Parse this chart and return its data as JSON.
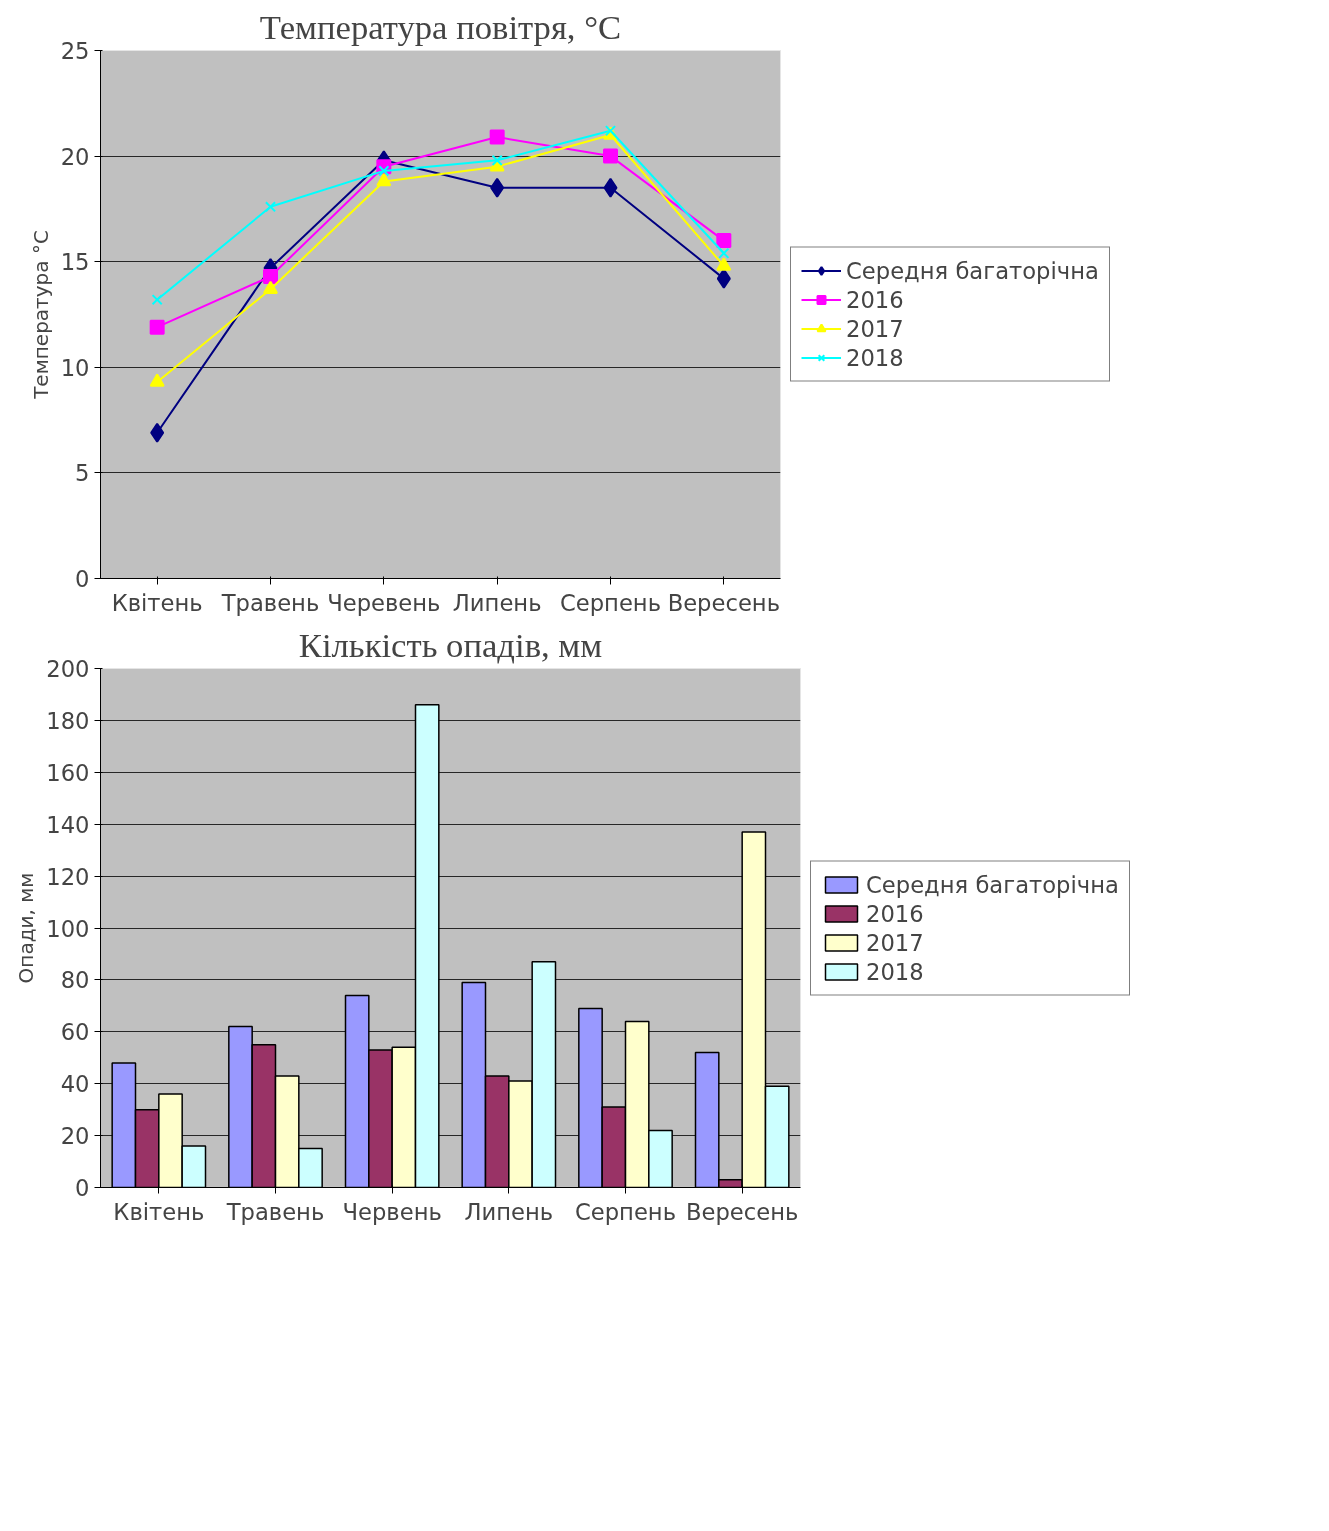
{
  "chart_data": [
    {
      "type": "line",
      "title": "Температура повітря, °C",
      "ylabel": "Температура °C",
      "categories": [
        "Квітень",
        "Травень",
        "Черевень",
        "Липень",
        "Серпень",
        "Вересень"
      ],
      "series": [
        {
          "name": "Середня багаторічна",
          "color": "#000080",
          "marker": "diamond",
          "values": [
            6.9,
            14.7,
            19.8,
            18.5,
            18.5,
            14.2
          ]
        },
        {
          "name": "2016",
          "color": "#ff00ff",
          "marker": "square",
          "values": [
            11.9,
            14.3,
            19.5,
            20.9,
            20.0,
            16.0
          ]
        },
        {
          "name": "2017",
          "color": "#ffff00",
          "marker": "triangle",
          "values": [
            9.3,
            13.7,
            18.8,
            19.5,
            21.0,
            14.8
          ]
        },
        {
          "name": "2018",
          "color": "#00ffff",
          "marker": "cross",
          "values": [
            13.2,
            17.6,
            19.3,
            19.8,
            21.2,
            15.4
          ]
        }
      ],
      "ylim": [
        0,
        25
      ],
      "yticks": [
        0,
        5,
        10,
        15,
        20,
        25
      ],
      "grid": "y",
      "legend": "right",
      "line_style": "solid"
    },
    {
      "type": "bar",
      "title": "Кількість опадів, мм",
      "ylabel": "Опади, мм",
      "categories": [
        "Квітень",
        "Травень",
        "Червень",
        "Липень",
        "Серпень",
        "Вересень"
      ],
      "series": [
        {
          "name": "Середня багаторічна",
          "color": "#9999ff",
          "values": [
            48,
            62,
            74,
            79,
            69,
            52
          ]
        },
        {
          "name": "2016",
          "color": "#993366",
          "values": [
            30,
            55,
            53,
            43,
            31,
            3
          ]
        },
        {
          "name": "2017",
          "color": "#ffffcc",
          "values": [
            36,
            43,
            54,
            41,
            64,
            137
          ]
        },
        {
          "name": "2018",
          "color": "#ccffff",
          "values": [
            16,
            15,
            186,
            87,
            22,
            39
          ]
        }
      ],
      "ylim": [
        0,
        200
      ],
      "yticks": [
        0,
        20,
        40,
        60,
        80,
        100,
        120,
        140,
        160,
        180,
        200
      ],
      "grid": "y",
      "legend": "right"
    }
  ]
}
